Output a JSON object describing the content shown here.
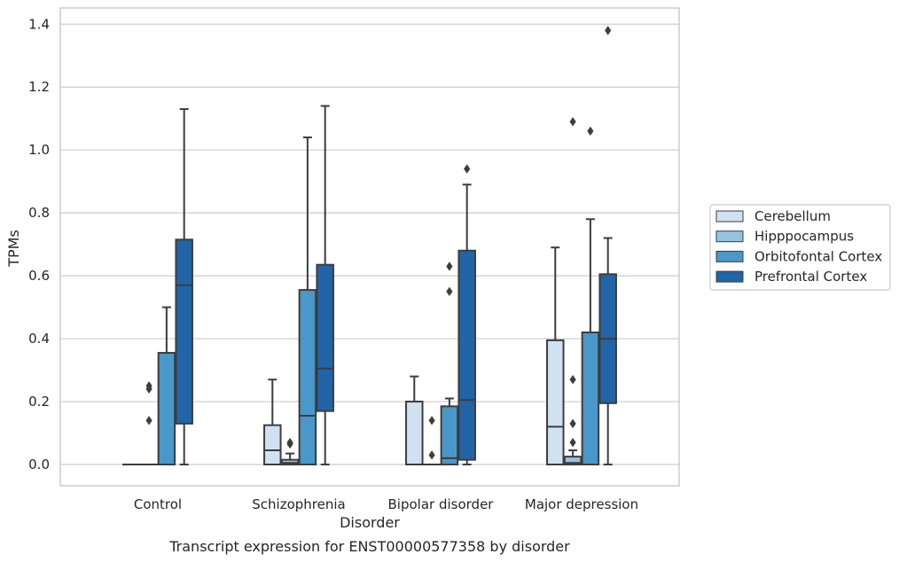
{
  "chart_data": {
    "type": "box",
    "xlabel": "Disorder",
    "ylabel": "TPMs",
    "caption": "Transcript expression for ENST00000577358 by disorder",
    "ylim": [
      -0.07,
      1.45
    ],
    "yticks": [
      "0.0",
      "0.2",
      "0.4",
      "0.6",
      "0.8",
      "1.0",
      "1.2",
      "1.4"
    ],
    "ytick_values": [
      0,
      0.2,
      0.4,
      0.6,
      0.8,
      1.0,
      1.2,
      1.4
    ],
    "grid": "horizontal",
    "legend_position": "right",
    "categories": [
      "Control",
      "Schizophrenia",
      "Bipolar disorder",
      "Major depression"
    ],
    "series": [
      {
        "name": "Cerebellum",
        "color": "#d0e1f2",
        "boxes": [
          {
            "q1": 0,
            "median": 0,
            "q3": 0,
            "whisker_low": 0,
            "whisker_high": 0,
            "outliers": []
          },
          {
            "q1": 0,
            "median": 0.045,
            "q3": 0.125,
            "whisker_low": 0,
            "whisker_high": 0.27,
            "outliers": []
          },
          {
            "q1": 0,
            "median": 0,
            "q3": 0.2,
            "whisker_low": 0,
            "whisker_high": 0.28,
            "outliers": []
          },
          {
            "q1": 0,
            "median": 0.12,
            "q3": 0.395,
            "whisker_low": 0,
            "whisker_high": 0.69,
            "outliers": []
          }
        ]
      },
      {
        "name": "Hipppocampus",
        "color": "#94c4df",
        "boxes": [
          {
            "q1": 0,
            "median": 0,
            "q3": 0,
            "whisker_low": 0,
            "whisker_high": 0,
            "outliers": [
              0.14,
              0.24,
              0.25
            ]
          },
          {
            "q1": 0,
            "median": 0.005,
            "q3": 0.015,
            "whisker_low": 0,
            "whisker_high": 0.035,
            "outliers": [
              0.065,
              0.07
            ]
          },
          {
            "q1": 0,
            "median": 0,
            "q3": 0,
            "whisker_low": 0,
            "whisker_high": 0,
            "outliers": [
              0.03,
              0.14
            ]
          },
          {
            "q1": 0,
            "median": 0.005,
            "q3": 0.025,
            "whisker_low": 0,
            "whisker_high": 0.045,
            "outliers": [
              0.07,
              0.13,
              0.27,
              1.09
            ]
          }
        ]
      },
      {
        "name": "Orbitofontal Cortex",
        "color": "#4a98c9",
        "boxes": [
          {
            "q1": 0,
            "median": 0,
            "q3": 0.355,
            "whisker_low": 0,
            "whisker_high": 0.5,
            "outliers": []
          },
          {
            "q1": 0,
            "median": 0.155,
            "q3": 0.555,
            "whisker_low": 0,
            "whisker_high": 1.04,
            "outliers": []
          },
          {
            "q1": 0,
            "median": 0.02,
            "q3": 0.185,
            "whisker_low": 0,
            "whisker_high": 0.21,
            "outliers": [
              0.55,
              0.63
            ]
          },
          {
            "q1": 0,
            "median": 0,
            "q3": 0.42,
            "whisker_low": 0,
            "whisker_high": 0.78,
            "outliers": [
              1.06
            ]
          }
        ]
      },
      {
        "name": "Prefrontal Cortex",
        "color": "#2264a8",
        "boxes": [
          {
            "q1": 0.13,
            "median": 0.57,
            "q3": 0.715,
            "whisker_low": 0,
            "whisker_high": 1.13,
            "outliers": []
          },
          {
            "q1": 0.17,
            "median": 0.305,
            "q3": 0.635,
            "whisker_low": 0,
            "whisker_high": 1.14,
            "outliers": []
          },
          {
            "q1": 0.015,
            "median": 0.205,
            "q3": 0.68,
            "whisker_low": 0,
            "whisker_high": 0.89,
            "outliers": [
              0.94
            ]
          },
          {
            "q1": 0.195,
            "median": 0.4,
            "q3": 0.605,
            "whisker_low": 0,
            "whisker_high": 0.72,
            "outliers": [
              1.38
            ]
          }
        ]
      }
    ]
  }
}
